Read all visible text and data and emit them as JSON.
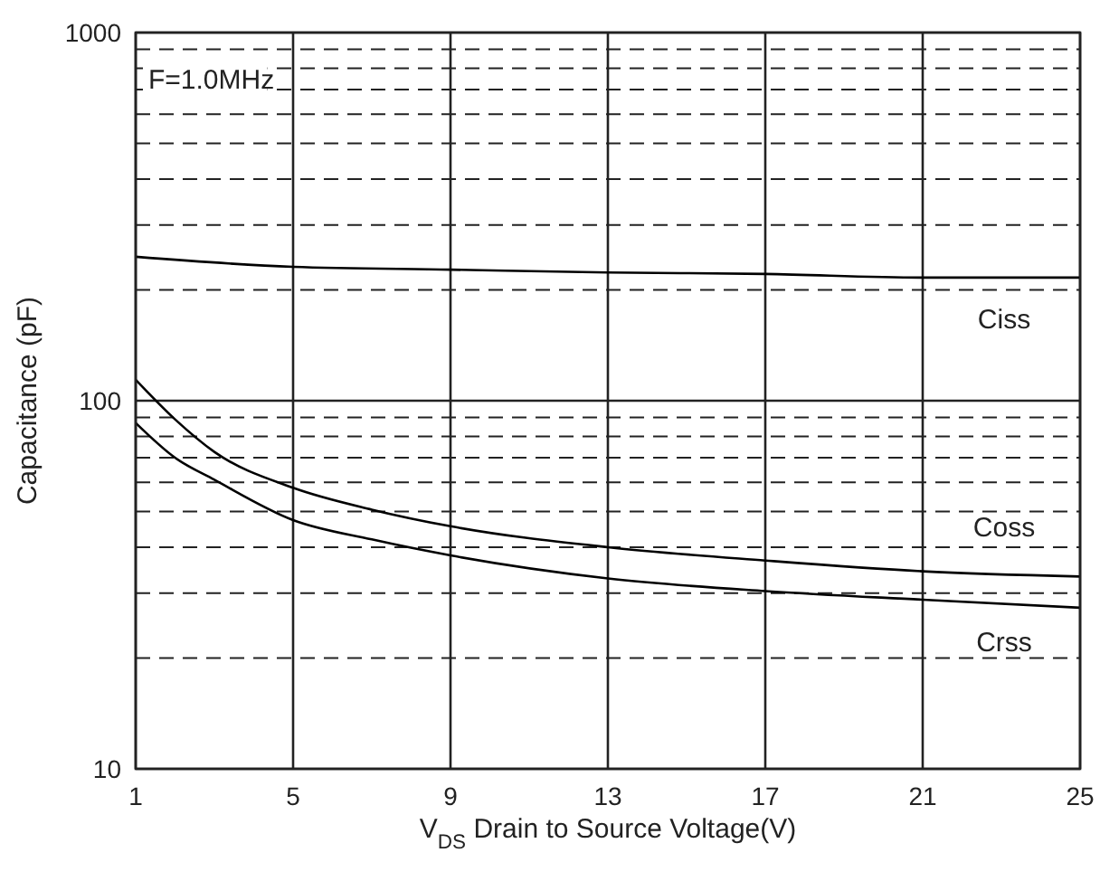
{
  "chart_data": {
    "type": "line",
    "xlabel": "V$_{DS}$ Drain to Source Voltage(V)",
    "ylabel": "Capacitance (pF)",
    "annotations": [
      "F=1.0MHz"
    ],
    "log": "y",
    "grid": true,
    "legend": false,
    "marker": "none",
    "line_style": "solid",
    "xlim": [
      1,
      25
    ],
    "xticks": [
      1,
      5,
      9,
      13,
      17,
      21,
      25
    ],
    "ylim": [
      10,
      1000
    ],
    "yticks": [
      10,
      {
        "value": 20,
        "label": null
      },
      {
        "value": 30,
        "label": null
      },
      {
        "value": 40,
        "label": null
      },
      {
        "value": 50,
        "label": null
      },
      {
        "value": 60,
        "label": null
      },
      {
        "value": 70,
        "label": null
      },
      {
        "value": 80,
        "label": null
      },
      {
        "value": 90,
        "label": null
      },
      100,
      {
        "value": 200,
        "label": null
      },
      {
        "value": 300,
        "label": null
      },
      {
        "value": 400,
        "label": null
      },
      {
        "value": 500,
        "label": null
      },
      {
        "value": 600,
        "label": null
      },
      {
        "value": 700,
        "label": null
      },
      {
        "value": 800,
        "label": null
      },
      {
        "value": 900,
        "label": null
      },
      1000
    ],
    "series": [
      {
        "name": "Ciss",
        "color": "#000000",
        "x": [
          1,
          5,
          9,
          13,
          17,
          21,
          25
        ],
        "values": [
          246,
          231,
          227,
          223,
          221,
          216,
          216
        ]
      },
      {
        "name": "Coss",
        "color": "#000000",
        "x": [
          1,
          2,
          3,
          5,
          7,
          9,
          13,
          17,
          21,
          25
        ],
        "values": [
          114,
          89,
          72.6,
          58,
          50.6,
          45.6,
          40,
          36.8,
          34.4,
          33.3
        ]
      },
      {
        "name": "Crss",
        "color": "#000000",
        "x": [
          1,
          2,
          3,
          5,
          7,
          9,
          13,
          17,
          21,
          25
        ],
        "values": [
          87,
          70,
          61,
          47.4,
          42,
          38,
          32.9,
          30.4,
          28.8,
          27.4
        ]
      }
    ]
  }
}
